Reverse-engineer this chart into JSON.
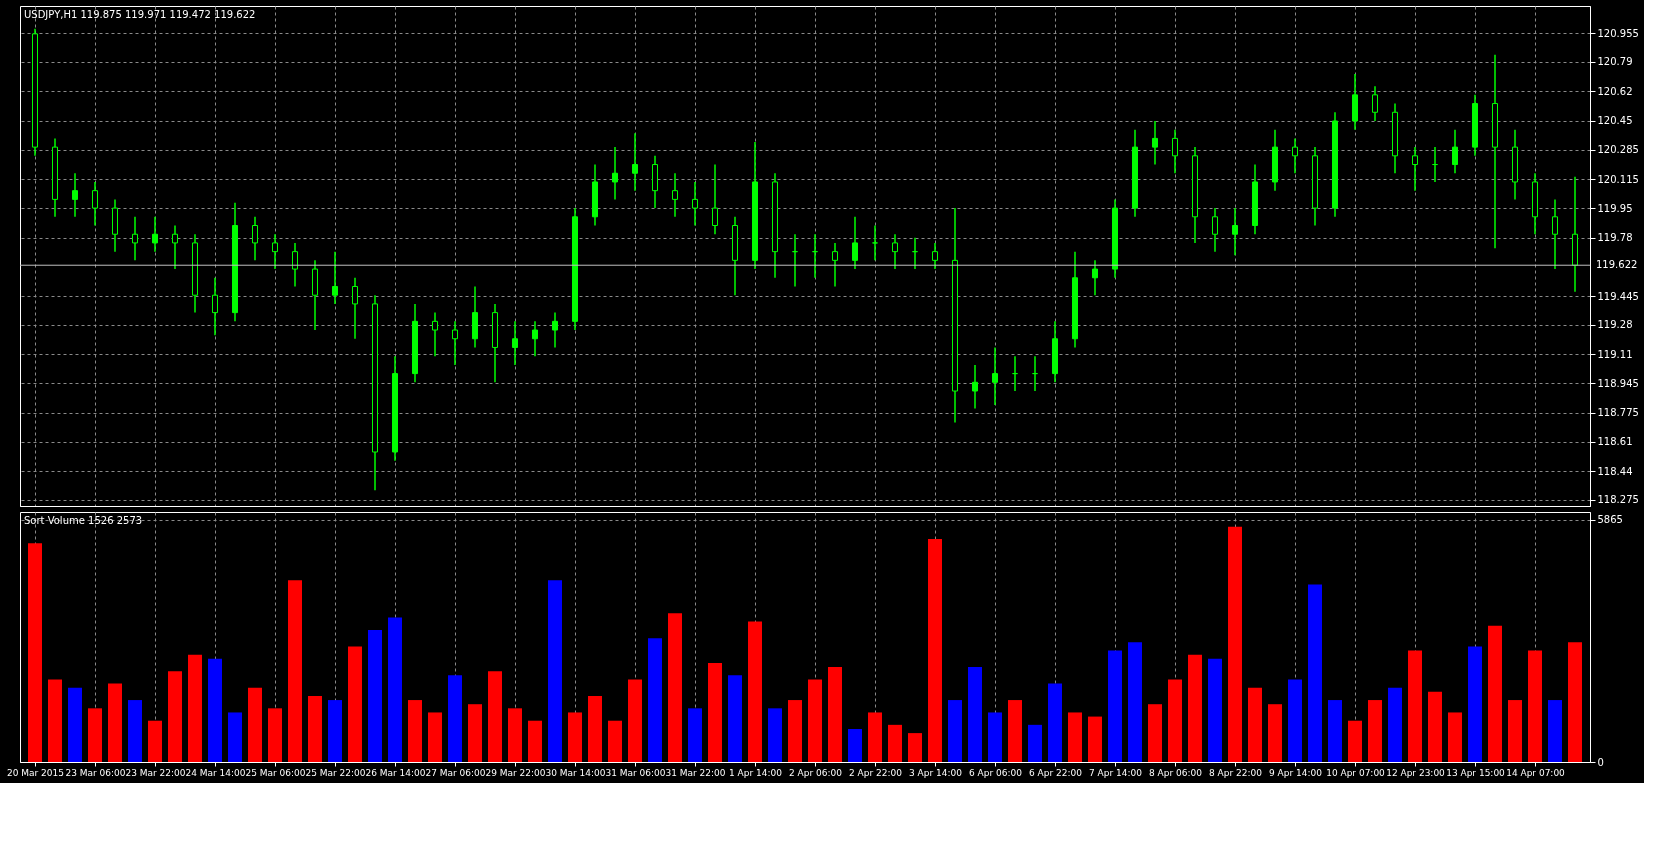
{
  "chart_data": [
    {
      "type": "candlestick",
      "title": "USDJPY,H1  119.875 119.971 119.472 119.622",
      "color": "#00ff00",
      "categories": [
        null,
        null,
        null,
        null,
        null,
        null,
        null,
        null,
        null,
        null,
        null,
        null,
        null,
        null,
        null,
        null,
        null,
        null,
        null,
        null,
        null,
        null,
        null,
        null,
        null,
        null,
        null,
        null,
        null,
        null,
        null,
        null,
        null,
        null,
        null,
        null,
        null,
        null,
        null,
        null,
        null,
        null,
        null,
        null,
        null,
        null,
        null,
        null,
        null,
        null,
        null,
        null,
        null,
        null,
        null,
        null,
        null,
        null,
        null,
        null,
        null,
        null,
        null,
        null,
        null,
        null,
        null,
        null,
        null,
        null,
        null,
        null,
        null,
        null,
        null,
        null,
        null,
        null
      ],
      "ohlc": [
        [
          120.95,
          120.98,
          120.25,
          120.3
        ],
        [
          120.3,
          120.35,
          119.9,
          120.0
        ],
        [
          120.0,
          120.15,
          119.9,
          120.05
        ],
        [
          120.05,
          120.1,
          119.85,
          119.95
        ],
        [
          119.95,
          120.0,
          119.7,
          119.8
        ],
        [
          119.8,
          119.9,
          119.65,
          119.75
        ],
        [
          119.75,
          119.9,
          119.7,
          119.8
        ],
        [
          119.8,
          119.85,
          119.6,
          119.75
        ],
        [
          119.75,
          119.8,
          119.35,
          119.45
        ],
        [
          119.45,
          119.55,
          119.22,
          119.35
        ],
        [
          119.35,
          119.98,
          119.3,
          119.85
        ],
        [
          119.85,
          119.9,
          119.65,
          119.75
        ],
        [
          119.75,
          119.8,
          119.6,
          119.7
        ],
        [
          119.7,
          119.75,
          119.5,
          119.6
        ],
        [
          119.6,
          119.65,
          119.25,
          119.45
        ],
        [
          119.45,
          119.7,
          119.4,
          119.5
        ],
        [
          119.5,
          119.55,
          119.2,
          119.4
        ],
        [
          119.4,
          119.45,
          118.33,
          118.55
        ],
        [
          118.55,
          119.1,
          118.5,
          119.0
        ],
        [
          119.0,
          119.4,
          118.95,
          119.3
        ],
        [
          119.3,
          119.35,
          119.1,
          119.25
        ],
        [
          119.25,
          119.3,
          119.05,
          119.2
        ],
        [
          119.2,
          119.5,
          119.15,
          119.35
        ],
        [
          119.35,
          119.4,
          118.95,
          119.15
        ],
        [
          119.15,
          119.3,
          119.05,
          119.2
        ],
        [
          119.2,
          119.3,
          119.1,
          119.25
        ],
        [
          119.25,
          119.35,
          119.15,
          119.3
        ],
        [
          119.3,
          119.95,
          119.25,
          119.9
        ],
        [
          119.9,
          120.2,
          119.85,
          120.1
        ],
        [
          120.1,
          120.3,
          120.0,
          120.15
        ],
        [
          120.15,
          120.38,
          120.05,
          120.2
        ],
        [
          120.2,
          120.25,
          119.95,
          120.05
        ],
        [
          120.05,
          120.15,
          119.9,
          120.0
        ],
        [
          120.0,
          120.1,
          119.85,
          119.95
        ],
        [
          119.95,
          120.2,
          119.8,
          119.85
        ],
        [
          119.85,
          119.9,
          119.45,
          119.65
        ],
        [
          119.65,
          120.33,
          119.6,
          120.1
        ],
        [
          120.1,
          120.15,
          119.55,
          119.7
        ],
        [
          119.7,
          119.8,
          119.5,
          119.7
        ],
        [
          119.7,
          119.8,
          119.55,
          119.7
        ],
        [
          119.7,
          119.75,
          119.5,
          119.65
        ],
        [
          119.65,
          119.9,
          119.6,
          119.75
        ],
        [
          119.75,
          119.85,
          119.65,
          119.75
        ],
        [
          119.75,
          119.8,
          119.6,
          119.7
        ],
        [
          119.7,
          119.78,
          119.6,
          119.7
        ],
        [
          119.7,
          119.75,
          119.6,
          119.65
        ],
        [
          119.65,
          119.95,
          118.72,
          118.9
        ],
        [
          118.9,
          119.05,
          118.8,
          118.95
        ],
        [
          118.95,
          119.15,
          118.82,
          119.0
        ],
        [
          119.0,
          119.1,
          118.9,
          119.0
        ],
        [
          119.0,
          119.1,
          118.9,
          119.0
        ],
        [
          119.0,
          119.3,
          118.95,
          119.2
        ],
        [
          119.2,
          119.7,
          119.15,
          119.55
        ],
        [
          119.55,
          119.65,
          119.45,
          119.6
        ],
        [
          119.6,
          120.0,
          119.55,
          119.95
        ],
        [
          119.95,
          120.4,
          119.9,
          120.3
        ],
        [
          120.3,
          120.45,
          120.2,
          120.35
        ],
        [
          120.35,
          120.4,
          120.15,
          120.25
        ],
        [
          120.25,
          120.3,
          119.75,
          119.9
        ],
        [
          119.9,
          119.95,
          119.7,
          119.8
        ],
        [
          119.8,
          119.95,
          119.68,
          119.85
        ],
        [
          119.85,
          120.2,
          119.8,
          120.1
        ],
        [
          120.1,
          120.4,
          120.05,
          120.3
        ],
        [
          120.3,
          120.35,
          120.15,
          120.25
        ],
        [
          120.25,
          120.3,
          119.85,
          119.95
        ],
        [
          119.95,
          120.5,
          119.9,
          120.45
        ],
        [
          120.45,
          120.72,
          120.4,
          120.6
        ],
        [
          120.6,
          120.65,
          120.45,
          120.5
        ],
        [
          120.5,
          120.55,
          120.15,
          120.25
        ],
        [
          120.25,
          120.3,
          120.05,
          120.2
        ],
        [
          120.2,
          120.3,
          120.1,
          120.2
        ],
        [
          120.2,
          120.4,
          120.15,
          120.3
        ],
        [
          120.3,
          120.6,
          120.25,
          120.55
        ],
        [
          120.55,
          120.83,
          119.72,
          120.3
        ],
        [
          120.3,
          120.4,
          120.0,
          120.1
        ],
        [
          120.1,
          120.15,
          119.8,
          119.9
        ],
        [
          119.9,
          120.0,
          119.6,
          119.8
        ],
        [
          119.8,
          120.13,
          119.47,
          119.622
        ]
      ],
      "ylim": [
        118.24,
        121.11
      ],
      "yticks": [
        118.275,
        118.44,
        118.61,
        118.775,
        118.945,
        119.11,
        119.28,
        119.445,
        119.78,
        119.95,
        120.115,
        120.285,
        120.45,
        120.62,
        120.79,
        120.955
      ],
      "ref_lines": [
        {
          "axis": "y",
          "value": 119.622,
          "label": "119.622",
          "color": "#c0c0c0"
        }
      ],
      "grid": true,
      "tick_labels": "y"
    },
    {
      "type": "bar",
      "title": "Sort Volume 1526 2573",
      "categories": [
        "20 Mar 2015",
        null,
        null,
        "23 Mar 06:00",
        null,
        null,
        "23 Mar 22:00",
        null,
        null,
        "24 Mar 14:00",
        null,
        null,
        "25 Mar 06:00",
        null,
        null,
        "25 Mar 22:00",
        null,
        null,
        "26 Mar 14:00",
        null,
        null,
        "27 Mar 06:00",
        null,
        null,
        "29 Mar 22:00",
        null,
        null,
        "30 Mar 14:00",
        null,
        null,
        "31 Mar 06:00",
        null,
        null,
        "31 Mar 22:00",
        null,
        null,
        "1 Apr 14:00",
        null,
        null,
        "2 Apr 06:00",
        null,
        null,
        "2 Apr 22:00",
        null,
        null,
        "3 Apr 14:00",
        null,
        null,
        "6 Apr 06:00",
        null,
        null,
        "6 Apr 22:00",
        null,
        null,
        "7 Apr 14:00",
        null,
        null,
        "8 Apr 06:00",
        null,
        null,
        "8 Apr 22:00",
        null,
        null,
        "9 Apr 14:00",
        null,
        null,
        "10 Apr 07:00",
        null,
        null,
        "12 Apr 23:00",
        null,
        null,
        "13 Apr 15:00",
        null,
        null,
        "14 Apr 07:00",
        null,
        null
      ],
      "values": [
        5300,
        2000,
        1800,
        1300,
        1900,
        1500,
        1000,
        2200,
        2600,
        2500,
        1200,
        1800,
        1300,
        4400,
        1600,
        1500,
        2800,
        3200,
        3500,
        1500,
        1200,
        2100,
        1400,
        2200,
        1300,
        1000,
        4400,
        1200,
        1600,
        1000,
        2000,
        3000,
        3600,
        1300,
        2400,
        2100,
        3400,
        1300,
        1500,
        2000,
        2300,
        800,
        1200,
        900,
        700,
        5400,
        1500,
        2300,
        1200,
        1500,
        900,
        1900,
        1200,
        1100,
        2700,
        2900,
        1400,
        2000,
        2600,
        2500,
        5700,
        1800,
        1400,
        2000,
        4300,
        1500,
        1000,
        1500,
        1800,
        2700,
        1700,
        1200,
        2800,
        3300,
        1500,
        2700,
        1500,
        2900
      ],
      "colors": [
        "#ff0000",
        "#ff0000",
        "#0000ff",
        "#ff0000",
        "#ff0000",
        "#0000ff",
        "#ff0000",
        "#ff0000",
        "#ff0000",
        "#0000ff",
        "#0000ff",
        "#ff0000",
        "#ff0000",
        "#ff0000",
        "#ff0000",
        "#0000ff",
        "#ff0000",
        "#0000ff",
        "#0000ff",
        "#ff0000",
        "#ff0000",
        "#0000ff",
        "#ff0000",
        "#ff0000",
        "#ff0000",
        "#ff0000",
        "#0000ff",
        "#ff0000",
        "#ff0000",
        "#ff0000",
        "#ff0000",
        "#0000ff",
        "#ff0000",
        "#0000ff",
        "#ff0000",
        "#0000ff",
        "#ff0000",
        "#0000ff",
        "#ff0000",
        "#ff0000",
        "#ff0000",
        "#0000ff",
        "#ff0000",
        "#ff0000",
        "#ff0000",
        "#ff0000",
        "#0000ff",
        "#0000ff",
        "#0000ff",
        "#ff0000",
        "#0000ff",
        "#0000ff",
        "#ff0000",
        "#ff0000",
        "#0000ff",
        "#0000ff",
        "#ff0000",
        "#ff0000",
        "#ff0000",
        "#0000ff",
        "#ff0000",
        "#ff0000",
        "#ff0000",
        "#0000ff",
        "#0000ff",
        "#0000ff",
        "#ff0000",
        "#ff0000",
        "#0000ff",
        "#ff0000",
        "#ff0000",
        "#ff0000",
        "#0000ff",
        "#ff0000",
        "#ff0000",
        "#ff0000",
        "#0000ff",
        "#ff0000"
      ],
      "ylim": [
        0,
        6055
      ],
      "yticks": [
        0,
        5865
      ],
      "grid": true
    }
  ]
}
